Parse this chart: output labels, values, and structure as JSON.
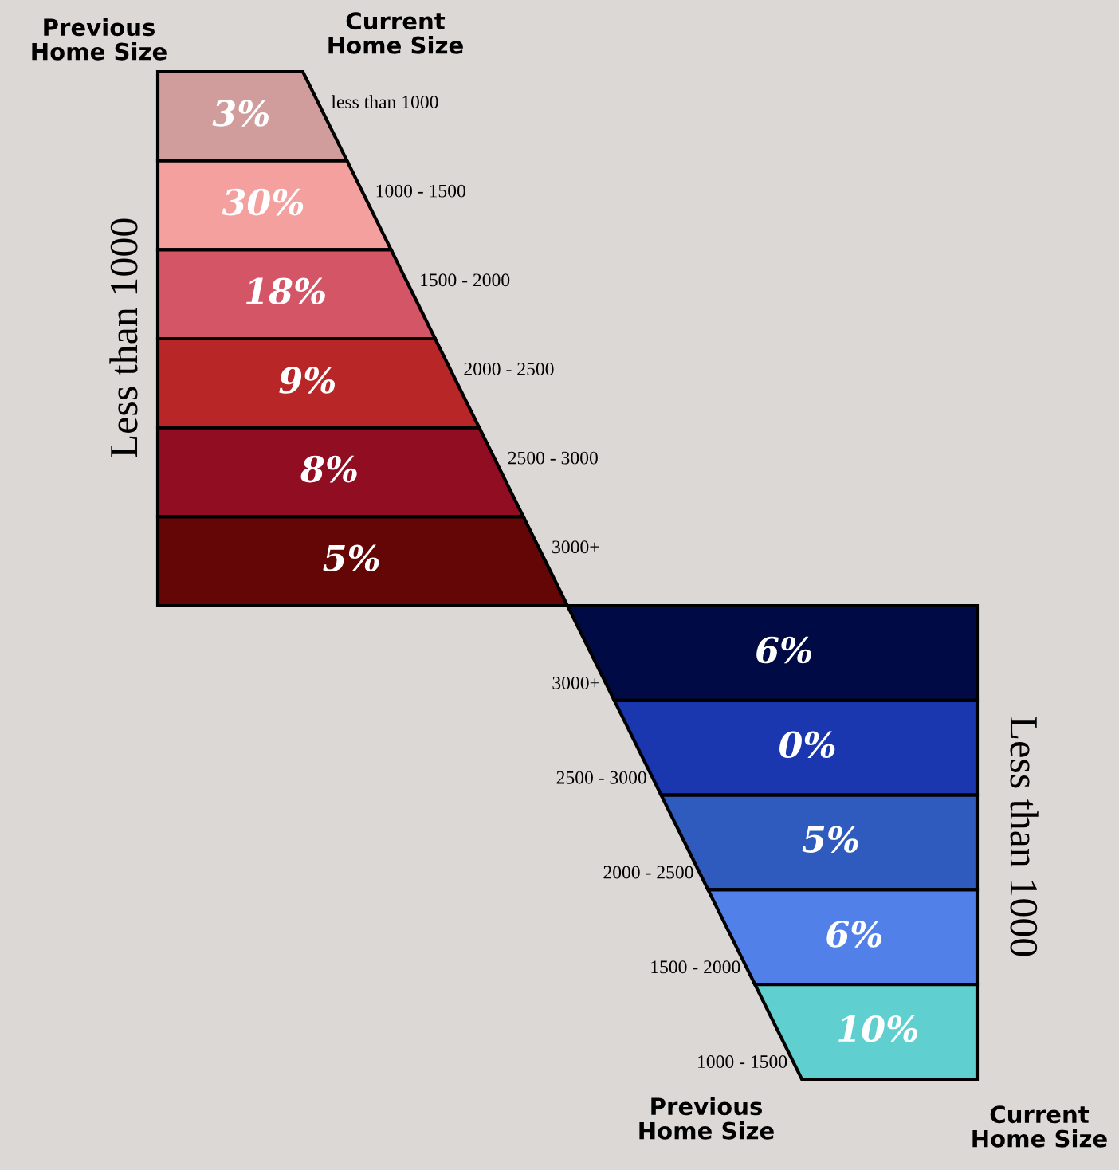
{
  "chart_data": [
    {
      "type": "other",
      "categories": [
        "less than 1000",
        "1000 - 1500",
        "1500 - 2000",
        "2000 - 2500",
        "2500 - 3000",
        "3000+"
      ],
      "values": [
        3,
        30,
        18,
        9,
        8,
        5
      ],
      "value_labels": [
        "3%",
        "30%",
        "18%",
        "9%",
        "8%",
        "5%"
      ],
      "colors": [
        "#d09d9c",
        "#f4a09e",
        "#d45566",
        "#b82628",
        "#910d21",
        "#650606"
      ],
      "xlabel": "Current\nHome Size",
      "ylabel": "Less than 1000",
      "annotations": [
        "Previous\nHome Size"
      ]
    },
    {
      "type": "other",
      "categories": [
        "3000+",
        "2500 - 3000",
        "2000 - 2500",
        "1500 - 2000",
        "1000 - 1500"
      ],
      "values": [
        6,
        0,
        5,
        6,
        10
      ],
      "value_labels": [
        "6%",
        "0%",
        "5%",
        "6%",
        "10%"
      ],
      "colors": [
        "#000b45",
        "#1b37b0",
        "#2f5bbf",
        "#5181e8",
        "#5fcfcf"
      ],
      "xlabel": "Previous\nHome Size",
      "ylabel": "Less than 1000",
      "annotations": [
        "Current\nHome Size"
      ]
    }
  ]
}
